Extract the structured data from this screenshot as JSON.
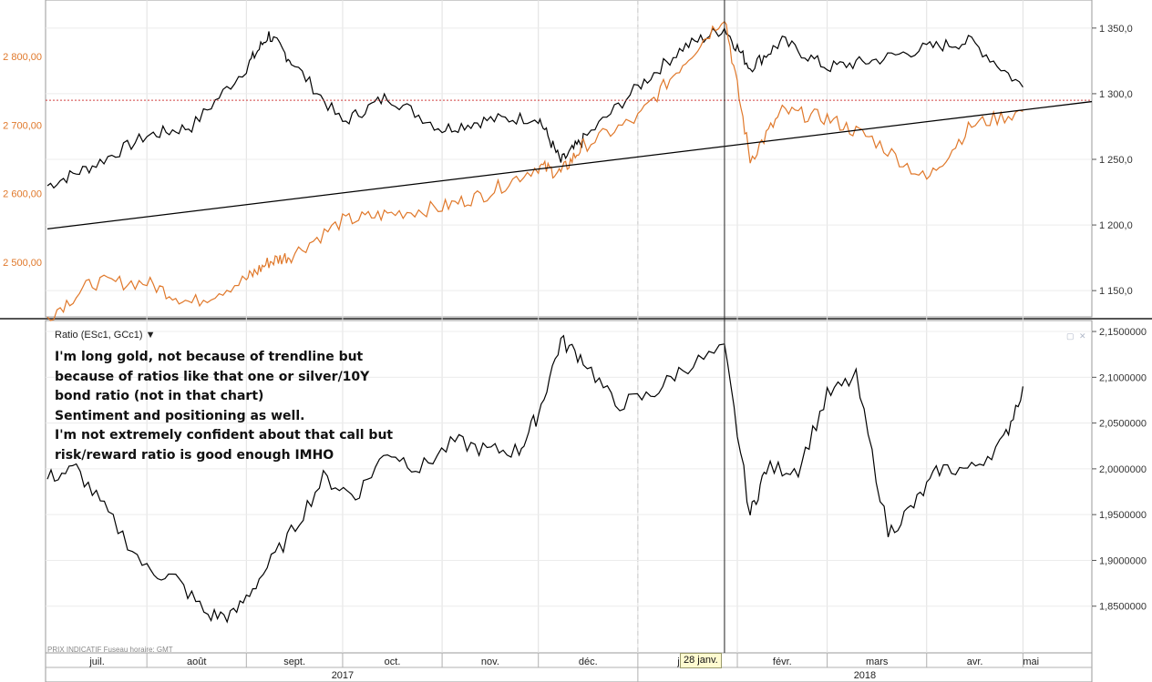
{
  "top_panel": {
    "left_axis_ticks": [
      "2 800,00",
      "2 700,00",
      "2 600,00",
      "2 500,00"
    ],
    "right_axis_ticks": [
      "1 350,0",
      "1 300,0",
      "1 250,0",
      "1 200,0",
      "1 150,0"
    ]
  },
  "bottom_panel": {
    "label": "Ratio (ESc1, GCc1)",
    "label_arrow": "▼",
    "right_axis_ticks": [
      "2,1500000",
      "2,1000000",
      "2,0500000",
      "2,0000000",
      "1,9500000",
      "1,9000000",
      "1,8500000"
    ],
    "annotation": [
      "I'm long gold, not because of trendline but",
      "because of ratios like that one or silver/10Y",
      "bond ratio (not in that chart)",
      "Sentiment and positioning as well.",
      "I'm not extremely confident about that call but",
      "risk/reward ratio is good enough IMHO"
    ],
    "footer": "PRIX INDICATIF   Fuseau horaire: GMT"
  },
  "x_axis": {
    "months": [
      "juil.",
      "août",
      "sept.",
      "oct.",
      "nov.",
      "déc.",
      "janv.",
      "févr.",
      "mars",
      "avr.",
      "mai"
    ],
    "years": [
      "2017",
      "2018"
    ],
    "cursor_label": "28 janv."
  },
  "colors": {
    "es_series": "#000000",
    "gold_series": "#e0782a",
    "ratio_series": "#000000",
    "trendline": "#000000",
    "ref_line": "#d04040"
  },
  "chart_data": [
    {
      "type": "line",
      "title": "",
      "x": [
        "2017-07-01",
        "2017-07-15",
        "2017-08-01",
        "2017-08-15",
        "2017-09-01",
        "2017-09-08",
        "2017-09-15",
        "2017-10-01",
        "2017-10-15",
        "2017-11-01",
        "2017-11-15",
        "2017-12-01",
        "2017-12-08",
        "2017-12-15",
        "2018-01-01",
        "2018-01-15",
        "2018-01-28",
        "2018-02-05",
        "2018-02-15",
        "2018-03-01",
        "2018-03-15",
        "2018-04-01",
        "2018-04-15",
        "2018-05-01"
      ],
      "series": [
        {
          "axis": "right",
          "values": [
            1230,
            1245,
            1268,
            1275,
            1320,
            1345,
            1325,
            1278,
            1298,
            1273,
            1280,
            1282,
            1248,
            1265,
            1305,
            1335,
            1350,
            1320,
            1340,
            1320,
            1325,
            1335,
            1340,
            1305
          ]
        },
        {
          "axis": "left",
          "values": [
            2420,
            2470,
            2470,
            2440,
            2475,
            2500,
            2510,
            2560,
            2570,
            2580,
            2600,
            2640,
            2630,
            2670,
            2710,
            2790,
            2860,
            2650,
            2720,
            2710,
            2680,
            2620,
            2700,
            2720
          ]
        }
      ],
      "left_ylim": [
        2420,
        2880
      ],
      "right_ylim": [
        1130,
        1370
      ],
      "trendline": {
        "axis": "right",
        "from": [
          "2017-07-01",
          1197
        ],
        "to": [
          "2018-05-01",
          1290
        ]
      },
      "reference_line": {
        "axis": "right",
        "value": 1295
      }
    },
    {
      "type": "line",
      "title": "",
      "x": [
        "2017-07-01",
        "2017-07-10",
        "2017-07-20",
        "2017-08-01",
        "2017-08-10",
        "2017-08-20",
        "2017-08-28",
        "2017-09-05",
        "2017-09-15",
        "2017-09-25",
        "2017-10-05",
        "2017-10-15",
        "2017-10-25",
        "2017-11-05",
        "2017-11-15",
        "2017-11-25",
        "2017-12-01",
        "2017-12-08",
        "2017-12-15",
        "2017-12-25",
        "2018-01-05",
        "2018-01-15",
        "2018-01-28",
        "2018-02-05",
        "2018-02-10",
        "2018-02-20",
        "2018-03-01",
        "2018-03-10",
        "2018-03-20",
        "2018-03-28",
        "2018-04-05",
        "2018-04-15",
        "2018-04-25",
        "2018-05-01"
      ],
      "series": [
        {
          "name": "Ratio (ESc1, GCc1)",
          "values": [
            1.99,
            2.0,
            1.95,
            1.89,
            1.88,
            1.84,
            1.84,
            1.88,
            1.93,
            1.99,
            1.97,
            2.02,
            2.0,
            2.03,
            2.02,
            2.02,
            2.06,
            2.14,
            2.12,
            2.07,
            2.08,
            2.11,
            2.13,
            1.95,
            2.0,
            2.0,
            2.08,
            2.1,
            1.93,
            1.96,
            2.0,
            2.0,
            2.03,
            2.09
          ]
        }
      ],
      "ylim": [
        1.8,
        2.16
      ]
    }
  ]
}
